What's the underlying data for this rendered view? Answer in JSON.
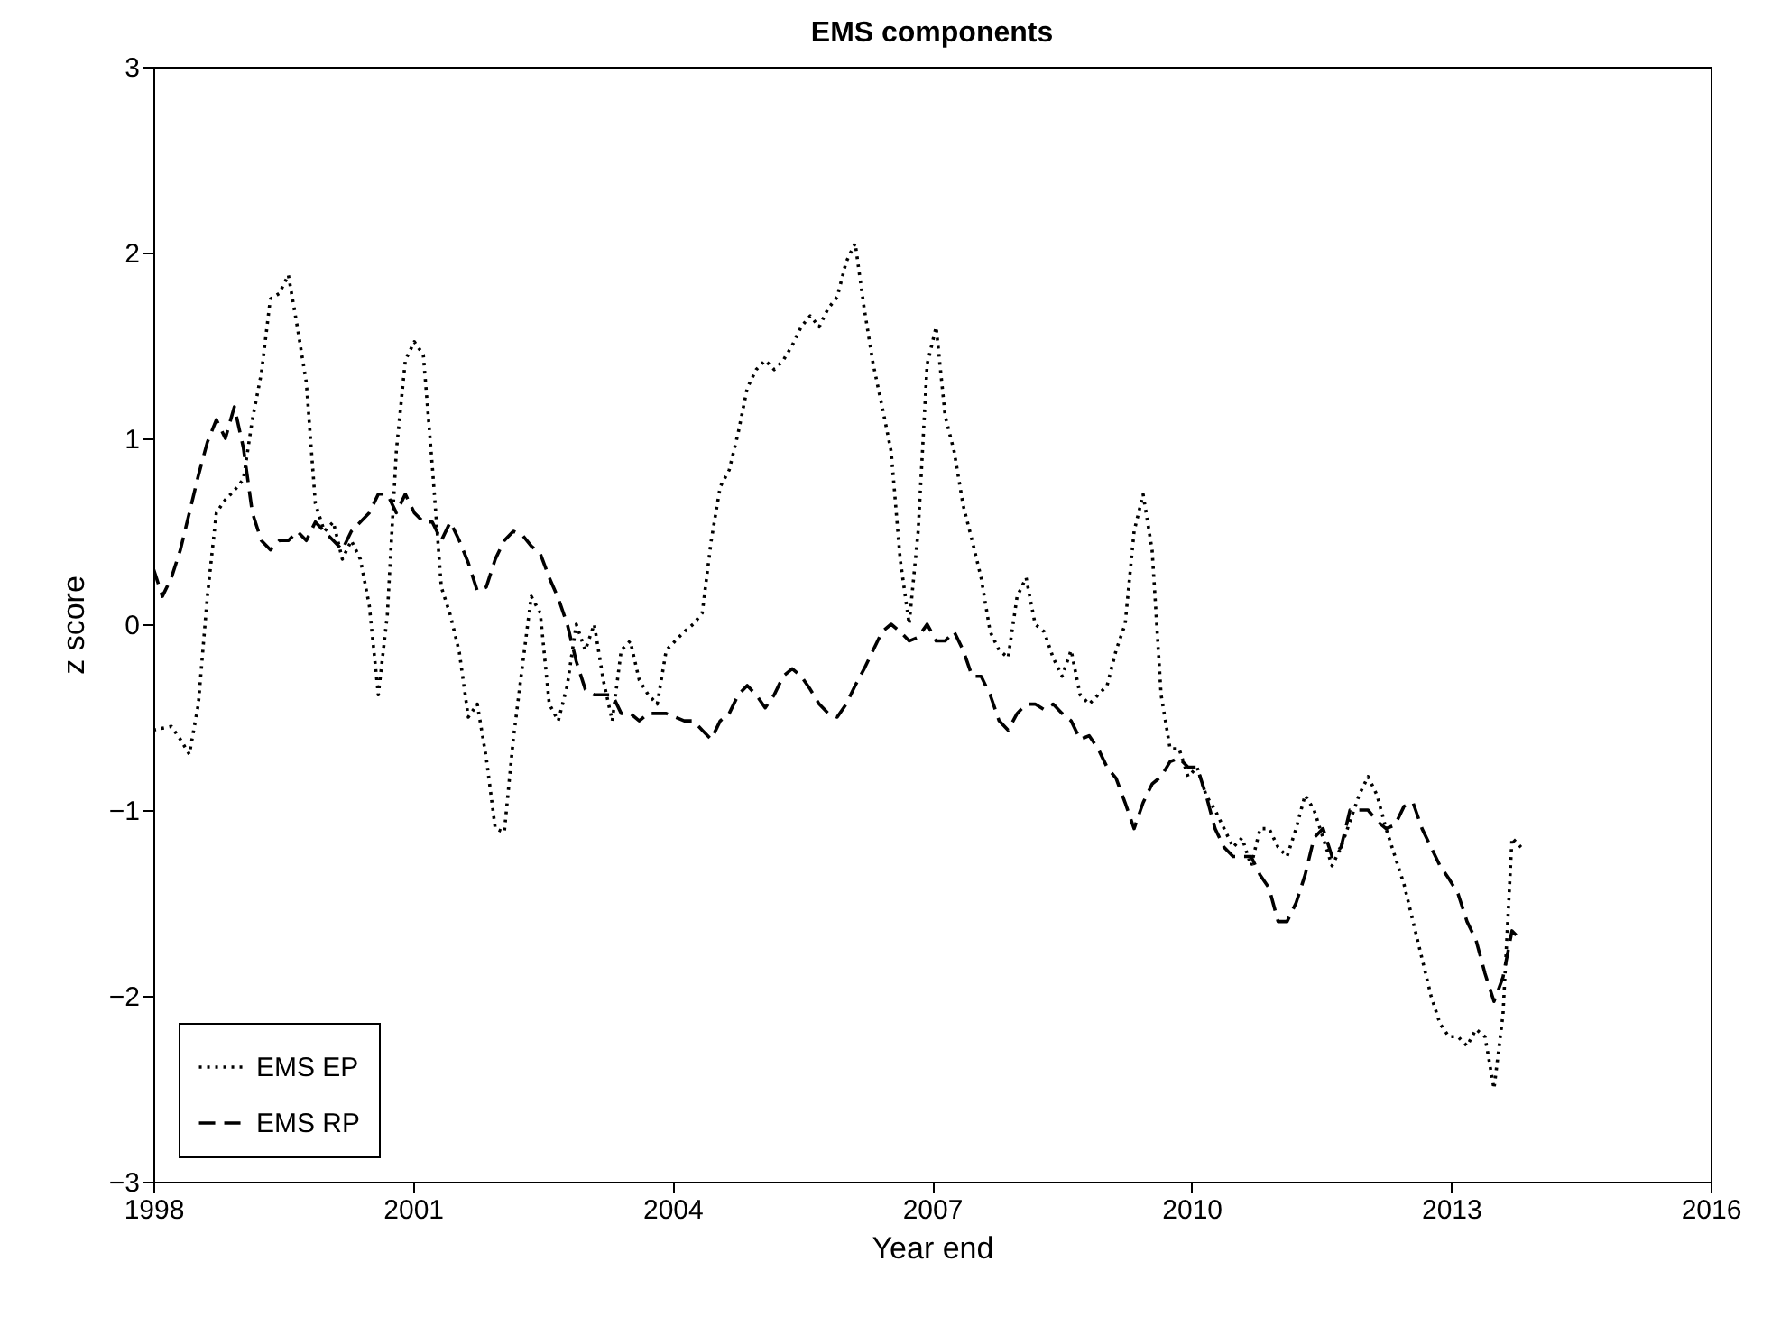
{
  "chart_data": {
    "type": "line",
    "title": "EMS components",
    "xlabel": "Year end",
    "ylabel": "z score",
    "x": [
      1998,
      1998.104,
      1998.208,
      1998.312,
      1998.416,
      1998.52,
      1998.624,
      1998.728,
      1998.832,
      1998.936,
      1999.04,
      1999.144,
      1999.248,
      1999.352,
      1999.456,
      1999.56,
      1999.664,
      1999.768,
      1999.872,
      1999.976,
      2000.08,
      2000.184,
      2000.288,
      2000.392,
      2000.496,
      2000.6,
      2000.704,
      2000.808,
      2000.912,
      2001.016,
      2001.12,
      2001.224,
      2001.328,
      2001.432,
      2001.536,
      2001.64,
      2001.744,
      2001.848,
      2001.952,
      2002.056,
      2002.16,
      2002.264,
      2002.368,
      2002.472,
      2002.576,
      2002.68,
      2002.784,
      2002.888,
      2002.992,
      2003.096,
      2003.2,
      2003.304,
      2003.408,
      2003.512,
      2003.616,
      2003.72,
      2003.824,
      2003.928,
      2004.032,
      2004.136,
      2004.24,
      2004.344,
      2004.448,
      2004.552,
      2004.656,
      2004.76,
      2004.864,
      2004.968,
      2005.072,
      2005.176,
      2005.28,
      2005.384,
      2005.488,
      2005.592,
      2005.696,
      2005.8,
      2005.904,
      2006.008,
      2006.112,
      2006.216,
      2006.32,
      2006.424,
      2006.528,
      2006.632,
      2006.736,
      2006.84,
      2006.944,
      2007.048,
      2007.152,
      2007.256,
      2007.36,
      2007.464,
      2007.568,
      2007.672,
      2007.776,
      2007.88,
      2007.984,
      2008.088,
      2008.192,
      2008.296,
      2008.4,
      2008.504,
      2008.608,
      2008.712,
      2008.816,
      2008.92,
      2009.024,
      2009.128,
      2009.232,
      2009.336,
      2009.44,
      2009.544,
      2009.648,
      2009.752,
      2009.856,
      2009.96,
      2010.064,
      2010.168,
      2010.272,
      2010.376,
      2010.48,
      2010.584,
      2010.688,
      2010.792,
      2010.896,
      2011,
      2011.104,
      2011.208,
      2011.312,
      2011.416,
      2011.52,
      2011.624,
      2011.728,
      2011.832,
      2011.936,
      2012.04,
      2012.144,
      2012.248,
      2012.352,
      2012.456,
      2012.56,
      2012.664,
      2012.768,
      2012.872,
      2012.976,
      2013.08,
      2013.184,
      2013.288,
      2013.392,
      2013.496,
      2013.6,
      2013.704,
      2013.808
    ],
    "series": [
      {
        "name": "EMS EP",
        "color": "#000000",
        "line_style": "dotted",
        "values": [
          -0.57,
          -0.56,
          -0.55,
          -0.62,
          -0.7,
          -0.43,
          0.15,
          0.6,
          0.67,
          0.72,
          0.78,
          1.1,
          1.35,
          1.75,
          1.78,
          1.88,
          1.6,
          1.3,
          0.65,
          0.5,
          0.55,
          0.35,
          0.45,
          0.35,
          0.1,
          -0.38,
          0.05,
          0.93,
          1.42,
          1.52,
          1.45,
          0.85,
          0.2,
          0.05,
          -0.15,
          -0.5,
          -0.43,
          -0.72,
          -1.1,
          -1.12,
          -0.62,
          -0.23,
          0.15,
          0.06,
          -0.43,
          -0.52,
          -0.33,
          0,
          -0.14,
          0,
          -0.3,
          -0.52,
          -0.14,
          -0.09,
          -0.3,
          -0.38,
          -0.43,
          -0.14,
          -0.09,
          -0.04,
          0,
          0.06,
          0.45,
          0.74,
          0.83,
          1.03,
          1.27,
          1.37,
          1.42,
          1.37,
          1.42,
          1.5,
          1.6,
          1.66,
          1.6,
          1.7,
          1.76,
          1.95,
          2.05,
          1.7,
          1.4,
          1.17,
          0.93,
          0.35,
          0,
          0.5,
          1.4,
          1.6,
          1.12,
          0.93,
          0.64,
          0.45,
          0.25,
          -0.04,
          -0.14,
          -0.18,
          0.15,
          0.25,
          0,
          -0.04,
          -0.18,
          -0.28,
          -0.14,
          -0.38,
          -0.43,
          -0.38,
          -0.33,
          -0.14,
          0,
          0.5,
          0.7,
          0.4,
          -0.38,
          -0.67,
          -0.67,
          -0.82,
          -0.77,
          -0.92,
          -1,
          -1.1,
          -1.2,
          -1.15,
          -1.3,
          -1.1,
          -1.1,
          -1.2,
          -1.25,
          -1.1,
          -0.92,
          -1,
          -1.15,
          -1.3,
          -1.2,
          -1.06,
          -0.92,
          -0.82,
          -0.92,
          -1.1,
          -1.25,
          -1.4,
          -1.6,
          -1.8,
          -2,
          -2.15,
          -2.22,
          -2.22,
          -2.27,
          -2.18,
          -2.22,
          -2.5,
          -2.1,
          -1.15,
          -1.2
        ]
      },
      {
        "name": "EMS RP",
        "color": "#000000",
        "line_style": "dashed",
        "values": [
          0.3,
          0.15,
          0.25,
          0.4,
          0.6,
          0.8,
          0.98,
          1.1,
          1,
          1.17,
          0.95,
          0.6,
          0.45,
          0.4,
          0.45,
          0.45,
          0.5,
          0.45,
          0.55,
          0.5,
          0.45,
          0.4,
          0.5,
          0.55,
          0.6,
          0.7,
          0.7,
          0.6,
          0.7,
          0.6,
          0.55,
          0.55,
          0.45,
          0.55,
          0.45,
          0.33,
          0.18,
          0.2,
          0.35,
          0.45,
          0.5,
          0.48,
          0.42,
          0.38,
          0.25,
          0.14,
          0,
          -0.2,
          -0.35,
          -0.38,
          -0.38,
          -0.38,
          -0.48,
          -0.48,
          -0.52,
          -0.48,
          -0.48,
          -0.48,
          -0.5,
          -0.52,
          -0.52,
          -0.57,
          -0.62,
          -0.52,
          -0.48,
          -0.38,
          -0.33,
          -0.38,
          -0.45,
          -0.38,
          -0.28,
          -0.24,
          -0.28,
          -0.35,
          -0.43,
          -0.48,
          -0.5,
          -0.43,
          -0.33,
          -0.24,
          -0.14,
          -0.04,
          0,
          -0.04,
          -0.09,
          -0.07,
          0,
          -0.09,
          -0.09,
          -0.04,
          -0.14,
          -0.28,
          -0.28,
          -0.38,
          -0.52,
          -0.57,
          -0.48,
          -0.43,
          -0.43,
          -0.46,
          -0.43,
          -0.48,
          -0.52,
          -0.62,
          -0.6,
          -0.67,
          -0.77,
          -0.83,
          -0.96,
          -1.1,
          -0.96,
          -0.86,
          -0.82,
          -0.74,
          -0.72,
          -0.77,
          -0.77,
          -0.92,
          -1.1,
          -1.2,
          -1.25,
          -1.25,
          -1.25,
          -1.35,
          -1.42,
          -1.6,
          -1.6,
          -1.5,
          -1.35,
          -1.15,
          -1.1,
          -1.25,
          -1.2,
          -1,
          -1,
          -1,
          -1.06,
          -1.1,
          -1.08,
          -0.98,
          -0.96,
          -1.1,
          -1.2,
          -1.3,
          -1.37,
          -1.45,
          -1.6,
          -1.7,
          -1.88,
          -2.03,
          -1.9,
          -1.65,
          -1.7
        ]
      }
    ],
    "xlim": [
      1998,
      2016
    ],
    "xticks": [
      1998,
      2001,
      2004,
      2007,
      2010,
      2013,
      2016
    ],
    "ylim": [
      -3,
      3
    ],
    "yticks": [
      -3,
      -2,
      -1,
      0,
      1,
      2,
      3
    ],
    "grid": false,
    "legend": "bottom left"
  }
}
